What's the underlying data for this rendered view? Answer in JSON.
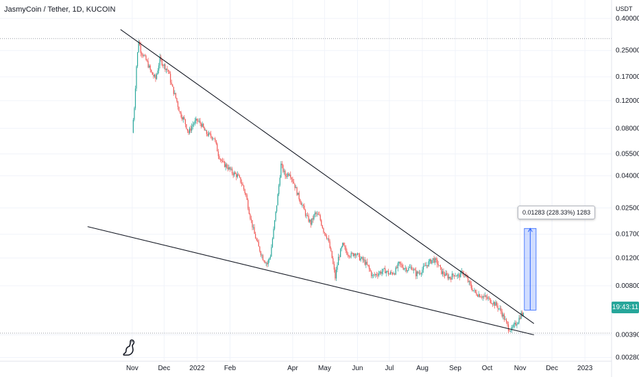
{
  "header": {
    "title": "JasmyCoin / Tether, 1D, KUCOIN"
  },
  "chart_data": {
    "type": "candlestick",
    "title": "JasmyCoin / Tether, 1D, KUCOIN",
    "yunit": "USDT",
    "yscale": "log",
    "ylim": [
      0.00265,
      0.42
    ],
    "y_ticks": [
      "0.40000",
      "0.25000",
      "0.17000",
      "0.12000",
      "0.08000",
      "0.05500",
      "0.04000",
      "0.02500",
      "0.01700",
      "0.01200",
      "0.00800",
      "0.00390",
      "0.00280"
    ],
    "y_tick_values": [
      0.4,
      0.25,
      0.17,
      0.12,
      0.08,
      0.055,
      0.04,
      0.025,
      0.017,
      0.012,
      0.008,
      0.0039,
      0.0028
    ],
    "x_ticks": [
      "Nov",
      "Dec",
      "2022",
      "Feb",
      "Apr",
      "May",
      "Jun",
      "Jul",
      "Aug",
      "Sep",
      "Oct",
      "Nov",
      "Dec",
      "2023"
    ],
    "current_price_label": "19:43:11",
    "measure_label": "0.01283 (228.33%) 1283",
    "price_path": [
      [
        "2021-11-01",
        0.075
      ],
      [
        "2021-11-03",
        0.11
      ],
      [
        "2021-11-05",
        0.2
      ],
      [
        "2021-11-07",
        0.29
      ],
      [
        "2021-11-09",
        0.25
      ],
      [
        "2021-11-12",
        0.23
      ],
      [
        "2021-11-15",
        0.21
      ],
      [
        "2021-11-19",
        0.18
      ],
      [
        "2021-11-23",
        0.165
      ],
      [
        "2021-11-27",
        0.22
      ],
      [
        "2021-12-01",
        0.2
      ],
      [
        "2021-12-05",
        0.185
      ],
      [
        "2021-12-08",
        0.15
      ],
      [
        "2021-12-12",
        0.125
      ],
      [
        "2021-12-16",
        0.1
      ],
      [
        "2021-12-20",
        0.09
      ],
      [
        "2021-12-24",
        0.075
      ],
      [
        "2021-12-28",
        0.085
      ],
      [
        "2022-01-01",
        0.09
      ],
      [
        "2022-01-05",
        0.085
      ],
      [
        "2022-01-09",
        0.075
      ],
      [
        "2022-01-13",
        0.072
      ],
      [
        "2022-01-17",
        0.07
      ],
      [
        "2022-01-21",
        0.055
      ],
      [
        "2022-01-25",
        0.048
      ],
      [
        "2022-01-29",
        0.046
      ],
      [
        "2022-02-03",
        0.042
      ],
      [
        "2022-02-08",
        0.04
      ],
      [
        "2022-02-12",
        0.036
      ],
      [
        "2022-02-16",
        0.03
      ],
      [
        "2022-02-20",
        0.022
      ],
      [
        "2022-02-24",
        0.017
      ],
      [
        "2022-02-28",
        0.014
      ],
      [
        "2022-03-04",
        0.012
      ],
      [
        "2022-03-08",
        0.011
      ],
      [
        "2022-03-11",
        0.0125
      ],
      [
        "2022-03-14",
        0.018
      ],
      [
        "2022-03-18",
        0.03
      ],
      [
        "2022-03-21",
        0.047
      ],
      [
        "2022-03-25",
        0.04
      ],
      [
        "2022-03-29",
        0.042
      ],
      [
        "2022-04-02",
        0.036
      ],
      [
        "2022-04-06",
        0.03
      ],
      [
        "2022-04-10",
        0.026
      ],
      [
        "2022-04-14",
        0.022
      ],
      [
        "2022-04-18",
        0.02
      ],
      [
        "2022-04-22",
        0.023
      ],
      [
        "2022-04-26",
        0.022
      ],
      [
        "2022-04-30",
        0.018
      ],
      [
        "2022-05-04",
        0.016
      ],
      [
        "2022-05-08",
        0.012
      ],
      [
        "2022-05-11",
        0.009
      ],
      [
        "2022-05-14",
        0.012
      ],
      [
        "2022-05-18",
        0.0145
      ],
      [
        "2022-05-22",
        0.013
      ],
      [
        "2022-05-26",
        0.0125
      ],
      [
        "2022-05-30",
        0.013
      ],
      [
        "2022-06-03",
        0.012
      ],
      [
        "2022-06-07",
        0.0115
      ],
      [
        "2022-06-11",
        0.0105
      ],
      [
        "2022-06-15",
        0.0092
      ],
      [
        "2022-06-19",
        0.0095
      ],
      [
        "2022-06-23",
        0.0098
      ],
      [
        "2022-06-27",
        0.01
      ],
      [
        "2022-07-01",
        0.0095
      ],
      [
        "2022-07-06",
        0.0098
      ],
      [
        "2022-07-10",
        0.011
      ],
      [
        "2022-07-14",
        0.0105
      ],
      [
        "2022-07-18",
        0.0102
      ],
      [
        "2022-07-22",
        0.0105
      ],
      [
        "2022-07-26",
        0.0095
      ],
      [
        "2022-07-30",
        0.0098
      ],
      [
        "2022-08-03",
        0.0105
      ],
      [
        "2022-08-07",
        0.0112
      ],
      [
        "2022-08-11",
        0.0118
      ],
      [
        "2022-08-15",
        0.0112
      ],
      [
        "2022-08-19",
        0.0098
      ],
      [
        "2022-08-23",
        0.0093
      ],
      [
        "2022-08-27",
        0.009
      ],
      [
        "2022-08-31",
        0.0095
      ],
      [
        "2022-09-04",
        0.0092
      ],
      [
        "2022-09-08",
        0.0098
      ],
      [
        "2022-09-12",
        0.0088
      ],
      [
        "2022-09-16",
        0.0078
      ],
      [
        "2022-09-20",
        0.0072
      ],
      [
        "2022-09-24",
        0.007
      ],
      [
        "2022-09-28",
        0.0068
      ],
      [
        "2022-10-02",
        0.0066
      ],
      [
        "2022-10-06",
        0.0063
      ],
      [
        "2022-10-10",
        0.006
      ],
      [
        "2022-10-14",
        0.0055
      ],
      [
        "2022-10-18",
        0.0048
      ],
      [
        "2022-10-21",
        0.0043
      ],
      [
        "2022-10-24",
        0.0042
      ],
      [
        "2022-10-27",
        0.0045
      ],
      [
        "2022-10-30",
        0.0048
      ],
      [
        "2022-11-02",
        0.0053
      ],
      [
        "2022-11-04",
        0.0052
      ]
    ],
    "trendlines": [
      {
        "name": "upper",
        "from": [
          "2021-10-21",
          0.34
        ],
        "to": [
          "2022-11-14",
          0.0046
        ]
      },
      {
        "name": "lower",
        "from": [
          "2021-09-20",
          0.019
        ],
        "to": [
          "2022-11-14",
          0.0039
        ]
      }
    ],
    "horizontal_lines": [
      0.298,
      0.004
    ],
    "measure": {
      "from_date": "2022-11-05",
      "to_date": "2022-11-07",
      "from_price": 0.0056,
      "to_price": 0.0185
    }
  }
}
